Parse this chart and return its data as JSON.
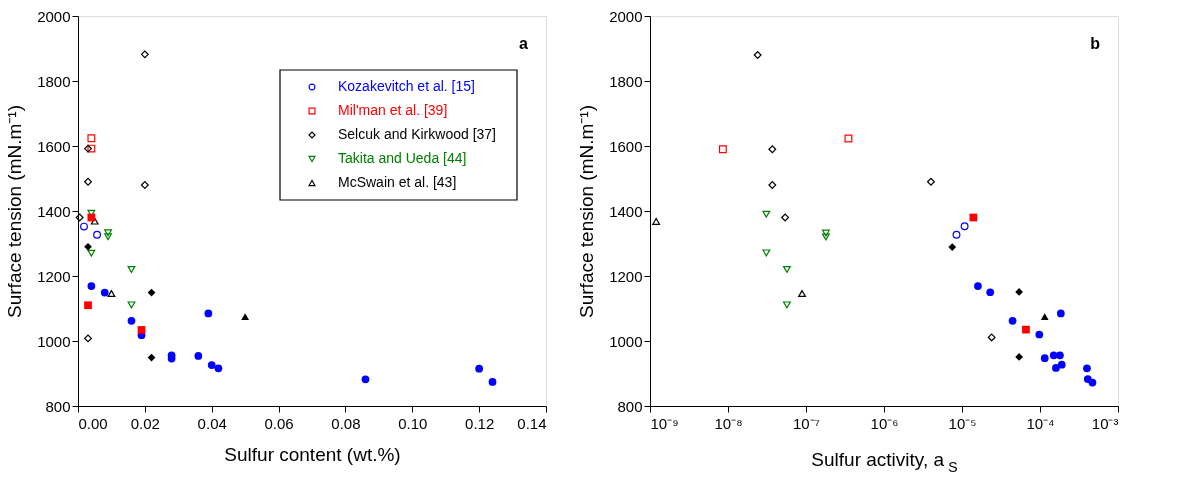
{
  "chart_data": [
    {
      "type": "scatter",
      "xlabel": "Sulfur content (wt.%)",
      "ylabel": "Surface tension (mN.m⁻¹)",
      "annotations": [
        "a"
      ],
      "legend": "top right",
      "grid": false,
      "xlim": [
        0,
        0.14
      ],
      "xticks": [
        {
          "value": 0,
          "label": "0.00"
        },
        {
          "value": 0.02,
          "label": "0.02"
        },
        {
          "value": 0.04,
          "label": "0.04"
        },
        {
          "value": 0.06,
          "label": "0.06"
        },
        {
          "value": 0.08,
          "label": "0.08"
        },
        {
          "value": 0.1,
          "label": "0.10"
        },
        {
          "value": 0.12,
          "label": "0.12"
        },
        {
          "value": 0.14,
          "label": "0.14"
        }
      ],
      "ylim": [
        800,
        2000
      ],
      "yticks": [
        800,
        1000,
        1200,
        1400,
        1600,
        1800,
        2000
      ],
      "series": [
        {
          "name": "Kozakevitch et al. [15]",
          "color": "#0000ff",
          "marker": "circle",
          "x": [
            0.0018,
            0.0057
          ],
          "values": [
            1352,
            1327
          ]
        },
        {
          "name": "Mil'man et al. [39]",
          "color": "#ff0000",
          "marker": "square",
          "x": [
            0.004,
            0.004
          ],
          "values": [
            1624,
            1592
          ]
        },
        {
          "name": "Selcuk and Kirkwood [37]",
          "color": "#000000",
          "marker": "diamond",
          "x": [
            0.02,
            0.003,
            0.003,
            0.02,
            0.0005,
            0.003
          ],
          "values": [
            1882,
            1592,
            1490,
            1480,
            1380,
            1008
          ]
        },
        {
          "name": "Takita and Ueda [44]",
          "color": "#008000",
          "marker": "triangle-down",
          "x": [
            0.004,
            0.004,
            0.009,
            0.009,
            0.016,
            0.016
          ],
          "values": [
            1393,
            1270,
            1333,
            1321,
            1220,
            1111
          ]
        },
        {
          "name": "McSwain et al. [43]",
          "color": "#000000",
          "marker": "triangle",
          "x": [
            0.005,
            0.01
          ],
          "values": [
            1369,
            1146
          ]
        },
        {
          "color": "#0000ff",
          "marker": "circle",
          "x": [
            0.004,
            0.008,
            0.016,
            0.019,
            0.028,
            0.028,
            0.036,
            0.039,
            0.04,
            0.042,
            0.086,
            0.12,
            0.124
          ],
          "values": [
            1169,
            1149,
            1062,
            1018,
            956,
            946,
            954,
            1085,
            926,
            916,
            882,
            915,
            874
          ]
        },
        {
          "color": "#ff0000",
          "marker": "square",
          "x": [
            0.004,
            0.003,
            0.019
          ],
          "values": [
            1380,
            1110,
            1034
          ]
        },
        {
          "color": "#000000",
          "marker": "diamond",
          "x": [
            0.003,
            0.022,
            0.022
          ],
          "values": [
            1290,
            1149,
            949
          ]
        },
        {
          "color": "#000000",
          "marker": "triangle",
          "x": [
            0.05
          ],
          "values": [
            1075
          ]
        }
      ]
    },
    {
      "type": "scatter",
      "xlabel": "Sulfur activity, a$_{S}$",
      "ylabel": "Surface tension (mN.m⁻¹)",
      "annotations": [
        "b"
      ],
      "log": "x",
      "grid": false,
      "xlim": [
        1e-09,
        0.001
      ],
      "xticks": [
        {
          "value": 1e-09,
          "label": "10⁻⁹"
        },
        {
          "value": 1e-08,
          "label": "10⁻⁸"
        },
        {
          "value": 1e-07,
          "label": "10⁻⁷"
        },
        {
          "value": 1e-06,
          "label": "10⁻⁶"
        },
        {
          "value": 1e-05,
          "label": "10⁻⁵"
        },
        {
          "value": 0.0001,
          "label": "10⁻⁴"
        },
        {
          "value": 0.001,
          "label": "10⁻³"
        }
      ],
      "ylim": [
        800,
        2000
      ],
      "yticks": [
        800,
        1000,
        1200,
        1400,
        1600,
        1800,
        2000
      ],
      "series": [
        {
          "color": "#0000ff",
          "marker": "circle",
          "x": [
            1.08e-05,
            8.5e-06
          ],
          "values": [
            1353,
            1327
          ]
        },
        {
          "color": "#ff0000",
          "marker": "square",
          "x": [
            8.6e-09,
            3.5e-07
          ],
          "values": [
            1590,
            1623
          ]
        },
        {
          "color": "#000000",
          "marker": "diamond",
          "x": [
            2.4e-08,
            3.7e-08,
            3.7e-08,
            5.4e-08,
            4e-06,
            2.4e-05
          ],
          "values": [
            1880,
            1590,
            1480,
            1380,
            1490,
            1011
          ]
        },
        {
          "color": "#008000",
          "marker": "triangle-down",
          "x": [
            3.1e-08,
            3.1e-08,
            5.7e-08,
            5.7e-08,
            1.8e-07,
            1.8e-07
          ],
          "values": [
            1390,
            1271,
            1220,
            1111,
            1332,
            1320
          ]
        },
        {
          "color": "#000000",
          "marker": "triangle",
          "x": [
            1.2e-09,
            8.9e-08
          ],
          "values": [
            1368,
            1146
          ]
        },
        {
          "color": "#0000ff",
          "marker": "circle",
          "x": [
            1.6e-05,
            2.3e-05,
            4.45e-05,
            9.8e-05,
            0.000185,
            0.000115,
            0.00015,
            0.00018,
            0.00016,
            0.00019,
            0.0004,
            0.00041,
            0.00047
          ],
          "values": [
            1169,
            1150,
            1062,
            1020,
            1085,
            947,
            956,
            956,
            917,
            927,
            916,
            883,
            872
          ]
        },
        {
          "color": "#ff0000",
          "marker": "square",
          "x": [
            1.4e-05,
            6.6e-05
          ],
          "values": [
            1380,
            1035
          ]
        },
        {
          "color": "#000000",
          "marker": "diamond",
          "x": [
            7.5e-06,
            5.4e-05,
            5.4e-05
          ],
          "values": [
            1289,
            1151,
            951
          ]
        },
        {
          "color": "#000000",
          "marker": "triangle",
          "x": [
            0.000115
          ],
          "values": [
            1075
          ]
        }
      ]
    }
  ]
}
